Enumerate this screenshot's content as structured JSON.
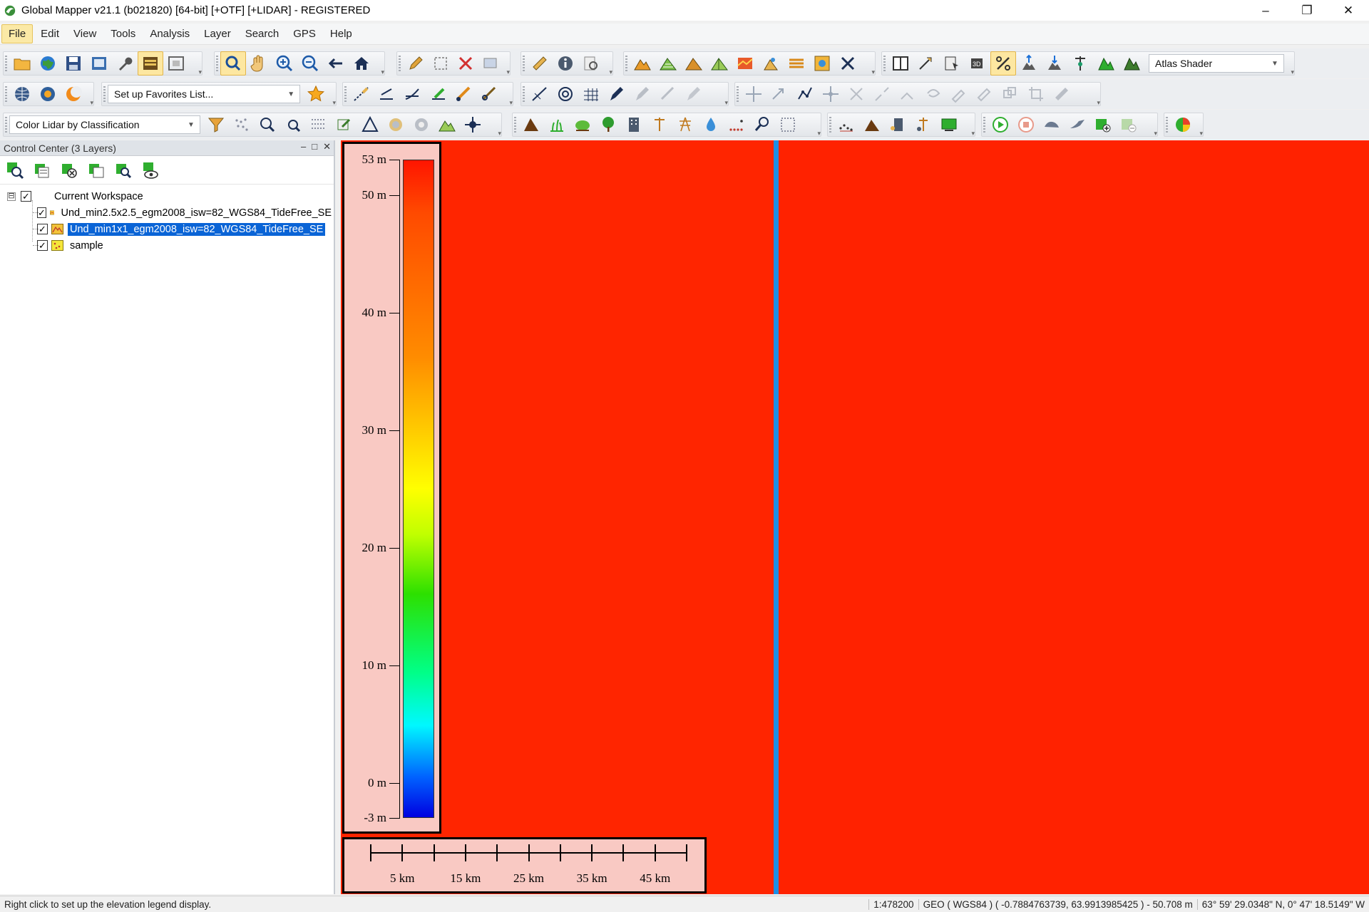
{
  "window": {
    "title": "Global Mapper v21.1 (b021820) [64-bit] [+OTF] [+LIDAR] - REGISTERED",
    "minimize": "–",
    "restore": "❐",
    "close": "✕"
  },
  "menu": {
    "items": [
      "File",
      "Edit",
      "View",
      "Tools",
      "Analysis",
      "Layer",
      "Search",
      "GPS",
      "Help"
    ],
    "active_index": 0
  },
  "toolbars": {
    "shader_select": "Atlas Shader",
    "favorites_select": "Set up Favorites List...",
    "lidar_select": "Color Lidar by Classification"
  },
  "control_center": {
    "title": "Control Center (3 Layers)",
    "workspace_label": "Current Workspace",
    "workspace_expander": "⊟",
    "layers": [
      {
        "name": "Und_min2.5x2.5_egm2008_isw=82_WGS84_TideFree_SE",
        "checked": true,
        "selected": false,
        "icon": "elevation-layer-icon"
      },
      {
        "name": "Und_min1x1_egm2008_isw=82_WGS84_TideFree_SE",
        "checked": true,
        "selected": true,
        "icon": "elevation-layer-icon"
      },
      {
        "name": "sample",
        "checked": true,
        "selected": false,
        "icon": "point-layer-icon"
      }
    ]
  },
  "legend": {
    "labels": [
      {
        "text": "53 m",
        "value": 53
      },
      {
        "text": "50 m",
        "value": 50
      },
      {
        "text": "40 m",
        "value": 40
      },
      {
        "text": "30 m",
        "value": 30
      },
      {
        "text": "20 m",
        "value": 20
      },
      {
        "text": "10 m",
        "value": 10
      },
      {
        "text": "0 m",
        "value": 0
      },
      {
        "text": "-3 m",
        "value": -3
      }
    ],
    "min": -3,
    "max": 53
  },
  "scale_bar": {
    "labels": [
      "5 km",
      "15 km",
      "25 km",
      "35 km",
      "45 km"
    ],
    "tick_count": 10
  },
  "status": {
    "hint": "Right click to set up the elevation legend display.",
    "scale": "1:478200",
    "coords": "GEO ( WGS84 ) ( -0.7884763739, 63.9913985425 ) - 50.708 m",
    "dms": "63° 59' 29.0348\" N, 0° 47' 18.5149\" W"
  },
  "colors": {
    "map_fill": "#ff2500",
    "divider_line": "#1c8fe6",
    "legend_bg": "#f9c9c3",
    "selection": "#0a64d6"
  }
}
